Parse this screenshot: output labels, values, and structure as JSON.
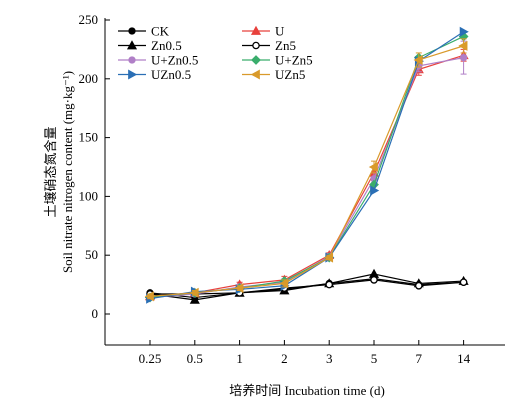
{
  "chart_data": {
    "type": "line",
    "xlabel": "培养时间 Incubation time (d)",
    "ylabel": "土壤硝态氮含量",
    "ylabel_en": "Soil nitrate nitrogen content (mg·kg⁻¹)",
    "categories": [
      "0.25",
      "0.5",
      "1",
      "2",
      "3",
      "5",
      "7",
      "14"
    ],
    "ylim": [
      0,
      250
    ],
    "yticks": [
      0,
      50,
      100,
      150,
      200,
      250
    ],
    "grid": false,
    "legend_position": "top-left",
    "series": [
      {
        "name": "CK",
        "marker": "circle-filled",
        "color": "#000000",
        "values": [
          18,
          14,
          18,
          21,
          26,
          30,
          25,
          27
        ]
      },
      {
        "name": "U",
        "marker": "triangle-up",
        "color": "#e8413c",
        "values": [
          15,
          18,
          25,
          29,
          50,
          120,
          208,
          220
        ]
      },
      {
        "name": "Zn0.5",
        "marker": "triangle-up",
        "color": "#000000",
        "values": [
          17,
          12,
          18,
          20,
          26,
          34,
          26,
          28
        ]
      },
      {
        "name": "Zn5",
        "marker": "circle-open",
        "color": "#000000",
        "values": [
          17,
          17,
          18,
          22,
          25,
          29,
          24,
          27
        ]
      },
      {
        "name": "U+Zn0.5",
        "marker": "circle-filled",
        "color": "#b07fc7",
        "values": [
          14,
          17,
          23,
          27,
          49,
          115,
          211,
          218
        ]
      },
      {
        "name": "U+Zn5",
        "marker": "diamond",
        "color": "#3aad6c",
        "values": [
          14,
          18,
          22,
          28,
          48,
          110,
          218,
          236
        ]
      },
      {
        "name": "UZn0.5",
        "marker": "triangle-right",
        "color": "#2b6fb5",
        "values": [
          13,
          19,
          21,
          24,
          48,
          105,
          215,
          240
        ]
      },
      {
        "name": "UZn5",
        "marker": "triangle-left",
        "color": "#d99a2b",
        "values": [
          15,
          18,
          22,
          26,
          48,
          125,
          216,
          228
        ]
      }
    ],
    "error_bars": {
      "U+Zn0.5": [
        2,
        2,
        2,
        3,
        2,
        5,
        5,
        14
      ],
      "U": [
        2,
        2,
        2,
        3,
        2,
        5,
        5,
        5
      ],
      "UZn5": [
        2,
        2,
        2,
        3,
        2,
        5,
        6,
        6
      ]
    }
  }
}
